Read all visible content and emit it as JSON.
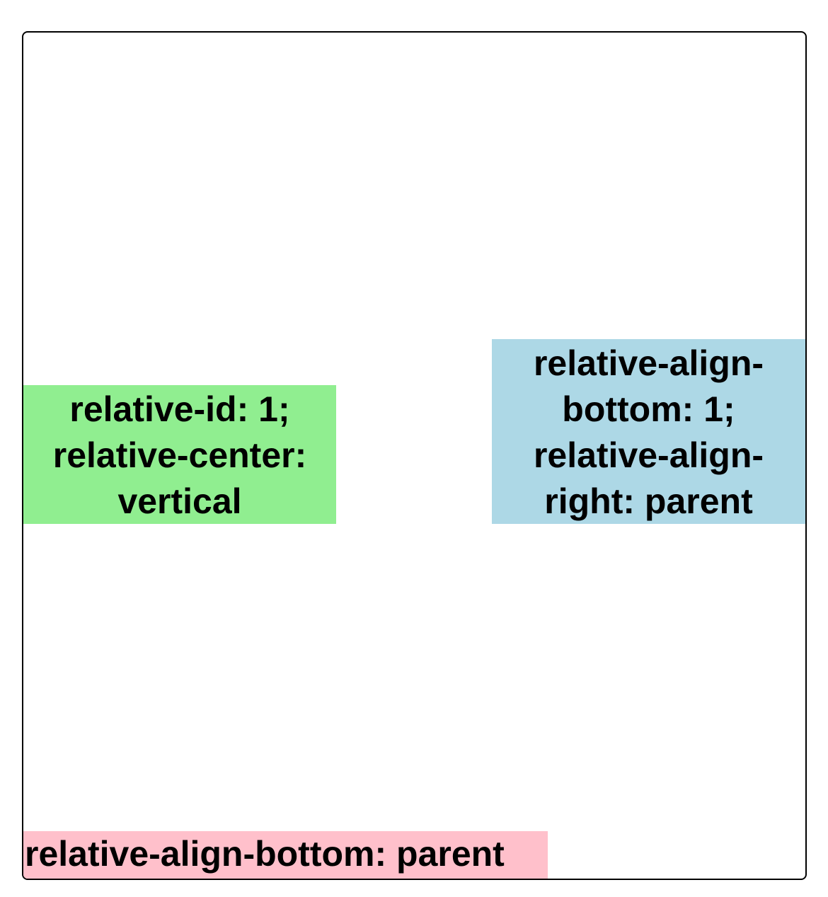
{
  "colors": {
    "green_box": "#90EE90",
    "blue_box": "#ADD8E6",
    "pink_box": "#FFC0CB",
    "border": "#000000"
  },
  "boxes": {
    "green": {
      "lines": [
        "relative-id: 1;",
        "relative-center:",
        "vertical"
      ]
    },
    "blue": {
      "lines": [
        "relative-align-",
        "bottom: 1;",
        "relative-align-",
        "right: parent"
      ]
    },
    "pink": {
      "text": "relative-align-bottom: parent"
    }
  }
}
